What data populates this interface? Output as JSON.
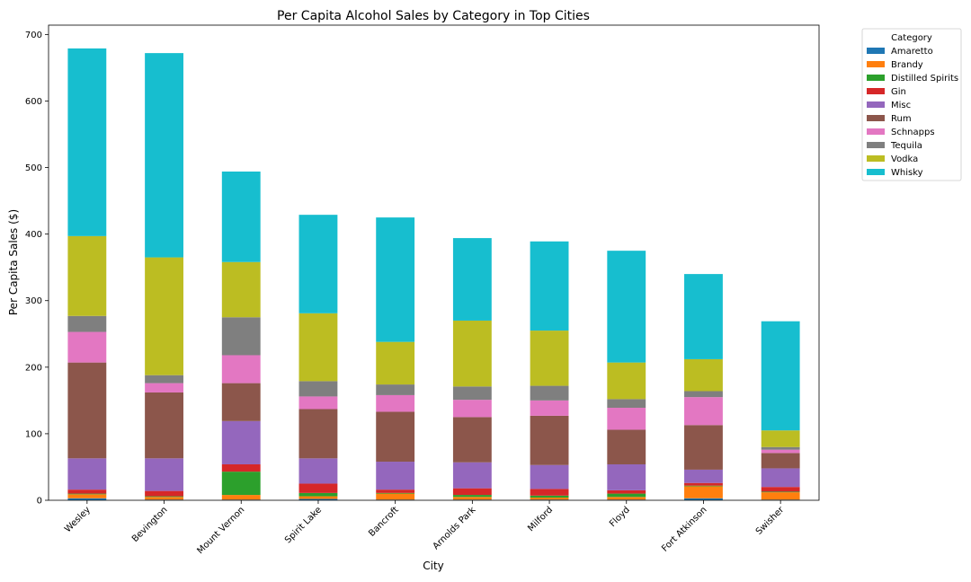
{
  "chart_data": {
    "type": "bar",
    "stacked": true,
    "title": "Per Capita Alcohol Sales by Category in Top Cities",
    "xlabel": "City",
    "ylabel": "Per Capita Sales ($)",
    "ylim": [
      0,
      714
    ],
    "yticks": [
      0,
      100,
      200,
      300,
      400,
      500,
      600,
      700
    ],
    "grid": false,
    "legend_title": "Category",
    "legend_position": "outside top-right",
    "categories": [
      "Wesley",
      "Bevington",
      "Mount Vernon",
      "Spirit Lake",
      "Bancroft",
      "Arnolds Park",
      "Milford",
      "Floyd",
      "Fort Atkinson",
      "Swisher"
    ],
    "series": [
      {
        "name": "Amaretto",
        "color": "#1f77b4",
        "values": [
          3,
          1,
          1,
          2,
          1,
          1,
          1,
          1,
          3,
          1
        ]
      },
      {
        "name": "Brandy",
        "color": "#ff7f0e",
        "values": [
          6,
          4,
          7,
          4,
          9,
          4,
          3,
          4,
          18,
          11
        ]
      },
      {
        "name": "Distilled Spirits",
        "color": "#2ca02c",
        "values": [
          1,
          1,
          35,
          5,
          1,
          3,
          3,
          5,
          1,
          1
        ]
      },
      {
        "name": "Gin",
        "color": "#d62728",
        "values": [
          6,
          8,
          11,
          14,
          5,
          10,
          10,
          5,
          4,
          7
        ]
      },
      {
        "name": "Misc",
        "color": "#9467bd",
        "values": [
          47,
          49,
          65,
          38,
          42,
          39,
          36,
          39,
          20,
          28
        ]
      },
      {
        "name": "Rum",
        "color": "#8c564b",
        "values": [
          144,
          99,
          57,
          74,
          75,
          68,
          74,
          52,
          67,
          23
        ]
      },
      {
        "name": "Schnapps",
        "color": "#e377c2",
        "values": [
          46,
          14,
          42,
          19,
          25,
          26,
          23,
          33,
          42,
          5
        ]
      },
      {
        "name": "Tequila",
        "color": "#7f7f7f",
        "values": [
          24,
          12,
          57,
          23,
          16,
          20,
          22,
          13,
          9,
          4
        ]
      },
      {
        "name": "Vodka",
        "color": "#bcbd22",
        "values": [
          120,
          177,
          83,
          102,
          64,
          99,
          83,
          55,
          48,
          25
        ]
      },
      {
        "name": "Whisky",
        "color": "#17becf",
        "values": [
          282,
          307,
          136,
          148,
          187,
          124,
          134,
          168,
          128,
          164
        ]
      }
    ]
  }
}
